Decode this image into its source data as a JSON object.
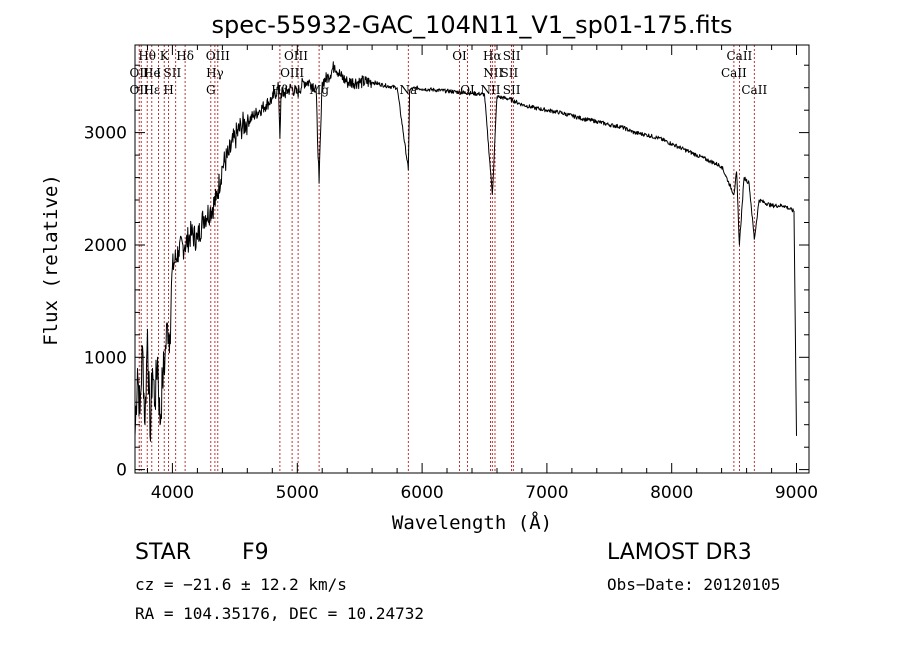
{
  "chart_data": {
    "type": "line",
    "title": "spec-55932-GAC_104N11_V1_sp01-175.fits",
    "xlabel": "Wavelength (Å)",
    "ylabel": "Flux (relative)",
    "xlim": [
      3700,
      9100
    ],
    "ylim": [
      -30,
      3780
    ],
    "xticks": [
      4000,
      5000,
      6000,
      7000,
      8000,
      9000
    ],
    "yticks": [
      0,
      1000,
      2000,
      3000
    ],
    "xtick_labels": [
      "4000",
      "5000",
      "6000",
      "7000",
      "8000",
      "9000"
    ],
    "ytick_labels": [
      "0",
      "1000",
      "2000",
      "3000"
    ],
    "series": [
      {
        "name": "flux",
        "x": [
          3700,
          3720,
          3740,
          3760,
          3780,
          3800,
          3820,
          3840,
          3860,
          3880,
          3900,
          3920,
          3940,
          3960,
          3980,
          4000,
          4050,
          4100,
          4150,
          4200,
          4250,
          4300,
          4350,
          4400,
          4450,
          4500,
          4550,
          4600,
          4650,
          4700,
          4750,
          4800,
          4850,
          4861,
          4870,
          4900,
          4950,
          5000,
          5050,
          5100,
          5150,
          5175,
          5200,
          5250,
          5300,
          5350,
          5400,
          5500,
          5600,
          5700,
          5800,
          5890,
          5900,
          5950,
          6000,
          6100,
          6200,
          6300,
          6400,
          6500,
          6563,
          6600,
          6700,
          6800,
          6900,
          7000,
          7100,
          7200,
          7300,
          7400,
          7500,
          7600,
          7700,
          7800,
          7900,
          8000,
          8100,
          8200,
          8300,
          8400,
          8498,
          8520,
          8542,
          8580,
          8620,
          8662,
          8700,
          8800,
          8900,
          8980,
          9000
        ],
        "y": [
          300,
          900,
          500,
          1100,
          400,
          1250,
          300,
          900,
          600,
          1000,
          400,
          800,
          1000,
          1300,
          1200,
          1800,
          1950,
          2000,
          2100,
          2050,
          2250,
          2300,
          2400,
          2700,
          2800,
          2950,
          3050,
          3100,
          3150,
          3200,
          3250,
          3300,
          3400,
          2950,
          3350,
          3350,
          3400,
          3350,
          3450,
          3450,
          3400,
          2550,
          3450,
          3500,
          3600,
          3500,
          3450,
          3450,
          3450,
          3420,
          3400,
          2670,
          3380,
          3400,
          3390,
          3380,
          3370,
          3360,
          3350,
          3340,
          2450,
          3320,
          3300,
          3250,
          3220,
          3200,
          3180,
          3150,
          3120,
          3100,
          3070,
          3050,
          3000,
          2980,
          2950,
          2900,
          2850,
          2800,
          2750,
          2700,
          2450,
          2650,
          2000,
          2600,
          2550,
          2050,
          2400,
          2350,
          2350,
          2300,
          300
        ],
        "color": "#000000"
      }
    ],
    "lines": [
      {
        "x": 3734,
        "color": "#b00000"
      },
      {
        "x": 3750,
        "color": "#b00000"
      },
      {
        "x": 3798,
        "color": "#b00000"
      },
      {
        "x": 3835,
        "color": "#b00000"
      },
      {
        "x": 3889,
        "color": "#b00000"
      },
      {
        "x": 3934,
        "color": "#b00000"
      },
      {
        "x": 3969,
        "color": "#b00000"
      },
      {
        "x": 4026,
        "color": "#b00000"
      },
      {
        "x": 4101,
        "color": "#b00000"
      },
      {
        "x": 4307,
        "color": "#b00000"
      },
      {
        "x": 4340,
        "color": "#b00000"
      },
      {
        "x": 4363,
        "color": "#b00000"
      },
      {
        "x": 4861,
        "color": "#b00000"
      },
      {
        "x": 4959,
        "color": "#b00000"
      },
      {
        "x": 5007,
        "color": "#b00000"
      },
      {
        "x": 5175,
        "color": "#b00000"
      },
      {
        "x": 5890,
        "color": "#b00000"
      },
      {
        "x": 6300,
        "color": "#b00000"
      },
      {
        "x": 6364,
        "color": "#b00000"
      },
      {
        "x": 6548,
        "color": "#b00000"
      },
      {
        "x": 6563,
        "color": "#b00000"
      },
      {
        "x": 6584,
        "color": "#b00000"
      },
      {
        "x": 6717,
        "color": "#b00000"
      },
      {
        "x": 6731,
        "color": "#b00000"
      },
      {
        "x": 8498,
        "color": "#b00000"
      },
      {
        "x": 8542,
        "color": "#b00000"
      },
      {
        "x": 8662,
        "color": "#b00000"
      }
    ],
    "line_labels": [
      {
        "text": "Hθ",
        "x": 3798,
        "row": 0
      },
      {
        "text": "K",
        "x": 3934,
        "row": 0
      },
      {
        "text": "Hδ",
        "x": 4101,
        "row": 0
      },
      {
        "text": "OIII",
        "x": 4363,
        "row": 0
      },
      {
        "text": "OIII",
        "x": 4990,
        "row": 0
      },
      {
        "text": "OI",
        "x": 6300,
        "row": 0
      },
      {
        "text": "Hα",
        "x": 6563,
        "row": 0
      },
      {
        "text": "SII",
        "x": 6717,
        "row": 0
      },
      {
        "text": "CaII",
        "x": 8542,
        "row": 0
      },
      {
        "text": "OII",
        "x": 3734,
        "row": 1
      },
      {
        "text": "He",
        "x": 3835,
        "row": 1
      },
      {
        "text": "I",
        "x": 3889,
        "row": 1
      },
      {
        "text": "SII",
        "x": 4000,
        "row": 1
      },
      {
        "text": "Hγ",
        "x": 4340,
        "row": 1
      },
      {
        "text": "OIII",
        "x": 4959,
        "row": 1
      },
      {
        "text": "NII",
        "x": 6570,
        "row": 1
      },
      {
        "text": "SII",
        "x": 6700,
        "row": 1
      },
      {
        "text": "CaII",
        "x": 8498,
        "row": 1
      },
      {
        "text": "OII",
        "x": 3734,
        "row": 2
      },
      {
        "text": "Hε",
        "x": 3835,
        "row": 2
      },
      {
        "text": "H",
        "x": 3969,
        "row": 2
      },
      {
        "text": "G",
        "x": 4307,
        "row": 2
      },
      {
        "text": "Hβ",
        "x": 4861,
        "row": 2
      },
      {
        "text": "Mg",
        "x": 5175,
        "row": 2
      },
      {
        "text": "Na",
        "x": 5890,
        "row": 2
      },
      {
        "text": "OI",
        "x": 6364,
        "row": 2
      },
      {
        "text": "NII",
        "x": 6548,
        "row": 2
      },
      {
        "text": "SII",
        "x": 6717,
        "row": 2
      },
      {
        "text": "CaII",
        "x": 8662,
        "row": 2
      }
    ]
  },
  "info": {
    "object_class": "STAR",
    "subclass": "F9",
    "survey": "LAMOST DR3",
    "cz": "cz = −21.6 ± 12.2 km/s",
    "obs_date": "Obs−Date: 20120105",
    "coords": "RA = 104.35176, DEC =  10.24732"
  }
}
